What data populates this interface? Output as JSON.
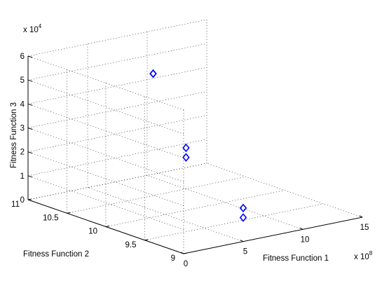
{
  "chart_data": {
    "type": "scatter3d",
    "title": "",
    "xlabel": "Fitness Function 1",
    "ylabel": "Fitness Function 2",
    "zlabel": "Fitness Function 3",
    "x_exponent": "x 10",
    "x_exponent_power": "8",
    "z_exponent": "x 10",
    "z_exponent_power": "4",
    "xlim": [
      0,
      15
    ],
    "ylim": [
      9,
      11
    ],
    "zlim": [
      0,
      6
    ],
    "x_ticks": [
      "0",
      "5",
      "10",
      "15"
    ],
    "x_tick_values": [
      0,
      5,
      10,
      15
    ],
    "y_ticks": [
      "9",
      "9.5",
      "10",
      "10.5",
      "11"
    ],
    "y_tick_values": [
      9,
      9.5,
      10,
      10.5,
      11
    ],
    "z_ticks": [
      "0",
      "1",
      "2",
      "3",
      "4",
      "5",
      "6"
    ],
    "z_tick_values": [
      0,
      1,
      2,
      3,
      4,
      5,
      6
    ],
    "grid": true,
    "marker": "diamond",
    "marker_color": "#0000ff",
    "series": [
      {
        "x": [
          0.2,
          0.2,
          10.5,
          10.5,
          5.0,
          5.0
        ],
        "y": [
          9.0,
          9.0,
          11.0,
          11.0,
          9.0,
          9.0
        ],
        "z": [
          4.4,
          4.0,
          4.2,
          4.2,
          1.4,
          1.0
        ]
      }
    ]
  }
}
